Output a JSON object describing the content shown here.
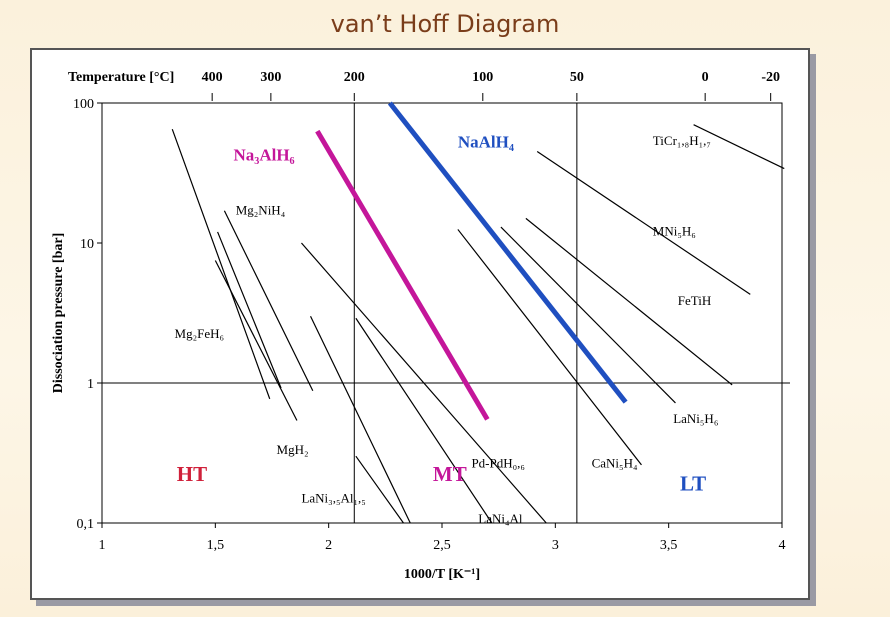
{
  "slide_title": "van’t Hoff Diagram",
  "chart_data": {
    "type": "line",
    "xlabel": "1000/T [K⁻¹]",
    "ylabel": "Dissociation pressure [bar]",
    "xlim": [
      1,
      4
    ],
    "ylim": [
      0.1,
      100
    ],
    "yscale": "log",
    "x_ticks": [
      {
        "v": 1,
        "label": "1"
      },
      {
        "v": 1.5,
        "label": "1,5"
      },
      {
        "v": 2,
        "label": "2"
      },
      {
        "v": 2.5,
        "label": "2,5"
      },
      {
        "v": 3,
        "label": "3"
      },
      {
        "v": 3.5,
        "label": "3,5"
      },
      {
        "v": 4,
        "label": "4"
      }
    ],
    "y_ticks": [
      {
        "v": 100,
        "label": "100"
      },
      {
        "v": 10,
        "label": "10"
      },
      {
        "v": 1,
        "label": "1"
      },
      {
        "v": 0.1,
        "label": "0,1"
      }
    ],
    "top_axis_title": "Temperature [°C]",
    "top_ticks": [
      {
        "v": 1.486,
        "label": "400"
      },
      {
        "v": 1.745,
        "label": "300"
      },
      {
        "v": 2.113,
        "label": "200"
      },
      {
        "v": 2.68,
        "label": "100"
      },
      {
        "v": 3.095,
        "label": "50"
      },
      {
        "v": 3.661,
        "label": "0"
      },
      {
        "v": 3.95,
        "label": "-20"
      }
    ],
    "reference_lines": {
      "x": [
        2.113,
        3.095
      ],
      "y": [
        1
      ]
    },
    "series": [
      {
        "name": "Na3AlH6",
        "color": "#c4169a",
        "width": 5,
        "points": [
          [
            1.95,
            63
          ],
          [
            2.7,
            0.55
          ]
        ]
      },
      {
        "name": "NaAlH4",
        "color": "#1f4fc0",
        "width": 5,
        "points": [
          [
            2.27,
            100
          ],
          [
            3.31,
            0.73
          ]
        ]
      },
      {
        "name": "TiCr1,8H1,7",
        "color": "#000",
        "width": 1.2,
        "points": [
          [
            3.61,
            70
          ],
          [
            4.01,
            34
          ]
        ]
      },
      {
        "name": "MNi5H6",
        "color": "#000",
        "width": 1.2,
        "points": [
          [
            2.92,
            45
          ],
          [
            3.86,
            4.3
          ]
        ]
      },
      {
        "name": "FeTiH",
        "color": "#000",
        "width": 1.2,
        "points": [
          [
            2.87,
            15
          ],
          [
            3.78,
            0.97
          ]
        ]
      },
      {
        "name": "LaNi5H6",
        "color": "#000",
        "width": 1.2,
        "points": [
          [
            2.76,
            13
          ],
          [
            3.53,
            0.72
          ]
        ]
      },
      {
        "name": "CaNi5H4",
        "color": "#000",
        "width": 1.2,
        "points": [
          [
            2.57,
            12.5
          ],
          [
            3.38,
            0.26
          ]
        ]
      },
      {
        "name": "Mg2NiH4",
        "color": "#000",
        "width": 1.2,
        "points": [
          [
            1.54,
            17
          ],
          [
            1.93,
            0.88
          ]
        ]
      },
      {
        "name": "Mg2FeH6 a",
        "color": "#000",
        "width": 1.2,
        "points": [
          [
            1.51,
            12
          ],
          [
            1.79,
            0.92
          ]
        ]
      },
      {
        "name": "Mg2FeH6 b",
        "color": "#000",
        "width": 1.2,
        "points": [
          [
            1.31,
            65
          ],
          [
            1.74,
            0.77
          ]
        ]
      },
      {
        "name": "MgH2",
        "color": "#000",
        "width": 1.2,
        "points": [
          [
            1.5,
            7.5
          ],
          [
            1.86,
            0.54
          ]
        ]
      },
      {
        "name": "Pd-PdH0,6",
        "color": "#000",
        "width": 1.2,
        "points": [
          [
            1.88,
            10
          ],
          [
            2.96,
            0.1
          ]
        ]
      },
      {
        "name": "LaNi4Al",
        "color": "#000",
        "width": 1.2,
        "points": [
          [
            2.12,
            2.9
          ],
          [
            2.72,
            0.1
          ]
        ]
      },
      {
        "name": "LaNi3,5Al1,5",
        "color": "#000",
        "width": 1.2,
        "points": [
          [
            1.92,
            3.0
          ],
          [
            2.36,
            0.1
          ]
        ]
      },
      {
        "name": "LaNi3,5Al1,5 b",
        "color": "#000",
        "width": 1.2,
        "points": [
          [
            2.12,
            0.3
          ],
          [
            2.33,
            0.1
          ]
        ]
      }
    ],
    "annotations": [
      {
        "text": "Na₃AlH₆",
        "x": 1.58,
        "y": 39,
        "color": "#c4169a",
        "size": 17
      },
      {
        "text": "NaAlH₄",
        "x": 2.57,
        "y": 48,
        "color": "#1f4fc0",
        "size": 17
      },
      {
        "text": "TiCr₁,₈H₁,₇",
        "x": 3.43,
        "y": 50,
        "color": "#000",
        "size": 13
      },
      {
        "text": "MNi₅H₆",
        "x": 3.43,
        "y": 11.3,
        "color": "#000",
        "size": 13
      },
      {
        "text": "FeTiH",
        "x": 3.54,
        "y": 3.6,
        "color": "#000",
        "size": 13
      },
      {
        "text": "LaNi₅H₆",
        "x": 3.52,
        "y": 0.52,
        "color": "#000",
        "size": 13
      },
      {
        "text": "CaNi₅H₄",
        "x": 3.16,
        "y": 0.25,
        "color": "#000",
        "size": 13
      },
      {
        "text": "Mg₂NiH₄",
        "x": 1.59,
        "y": 16,
        "color": "#000",
        "size": 13
      },
      {
        "text": "Mg₂FeH₆",
        "x": 1.32,
        "y": 2.1,
        "color": "#000",
        "size": 13
      },
      {
        "text": "MgH₂",
        "x": 1.77,
        "y": 0.31,
        "color": "#000",
        "size": 13
      },
      {
        "text": "Pd-PdH₀,₆",
        "x": 2.63,
        "y": 0.25,
        "color": "#000",
        "size": 13
      },
      {
        "text": "LaNi₃,₅Al₁,₅",
        "x": 1.88,
        "y": 0.14,
        "color": "#000",
        "size": 13
      },
      {
        "text": "LaNi₄Al",
        "x": 2.66,
        "y": 0.1,
        "color": "#000",
        "size": 13
      }
    ],
    "regions": [
      {
        "text": "HT",
        "x": 1.33,
        "y": 0.2,
        "color": "#d0203a"
      },
      {
        "text": "MT",
        "x": 2.46,
        "y": 0.2,
        "color": "#c4169a"
      },
      {
        "text": "LT",
        "x": 3.55,
        "y": 0.17,
        "color": "#1f4fc0"
      }
    ]
  }
}
